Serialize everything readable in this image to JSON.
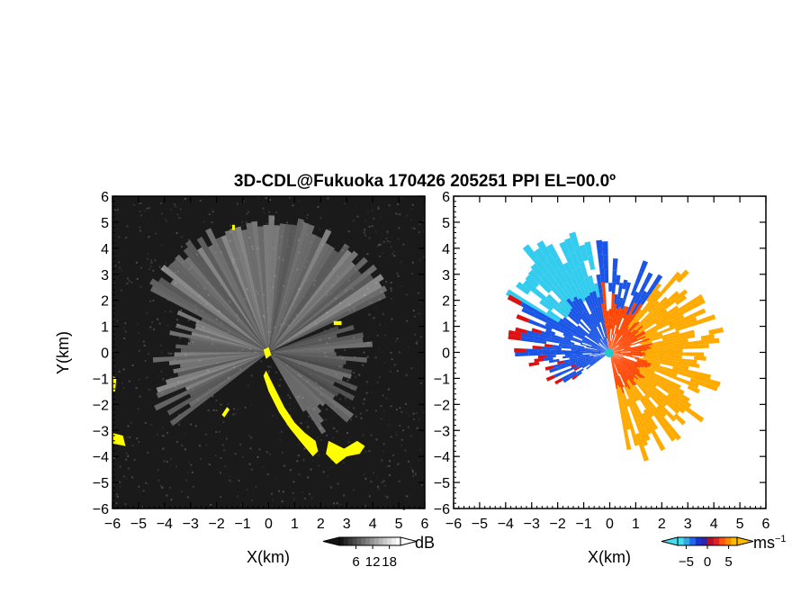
{
  "title": "3D-CDL@Fukuoka 170426 205251 PPI EL=00.0º",
  "chart_data": [
    {
      "type": "heatmap",
      "xlabel": "X(km)",
      "ylabel": "Y(km)",
      "xlim": [
        -6,
        6
      ],
      "ylim": [
        -6,
        6
      ],
      "x_ticks": [
        "−6",
        "−5",
        "−4",
        "−3",
        "−2",
        "−1",
        "0",
        "1",
        "2",
        "3",
        "4",
        "5",
        "6"
      ],
      "y_ticks": [
        "6",
        "5",
        "4",
        "3",
        "2",
        "1",
        "0",
        "−1",
        "−2",
        "−3",
        "−4",
        "−5",
        "−6"
      ],
      "colorbar": {
        "unit": "dB",
        "ticks": [
          "6",
          "12",
          "18"
        ],
        "range": [
          0,
          22
        ]
      },
      "colors": {
        "background": "#1a1a1a",
        "echo": "#d0d0d0",
        "highlight": "#ffff00"
      }
    },
    {
      "type": "heatmap",
      "xlabel": "X(km)",
      "ylabel": "",
      "xlim": [
        -6,
        6
      ],
      "ylim": [
        -6,
        6
      ],
      "x_ticks": [
        "−6",
        "−5",
        "−4",
        "−3",
        "−2",
        "−1",
        "0",
        "1",
        "2",
        "3",
        "4",
        "5",
        "6"
      ],
      "y_ticks": [
        "6",
        "5",
        "4",
        "3",
        "2",
        "1",
        "0",
        "−1",
        "−2",
        "−3",
        "−4",
        "−5",
        "−6"
      ],
      "colorbar": {
        "unit": "ms",
        "unit_exp": "−1",
        "ticks": [
          "−5",
          "0",
          "5"
        ],
        "range": [
          -7,
          7
        ]
      },
      "colors": {
        "approach_light": "#33ccee",
        "approach": "#1a55e6",
        "recede": "#ff4400",
        "recede_light": "#ffaa00",
        "strong": "#dd1111"
      }
    }
  ]
}
